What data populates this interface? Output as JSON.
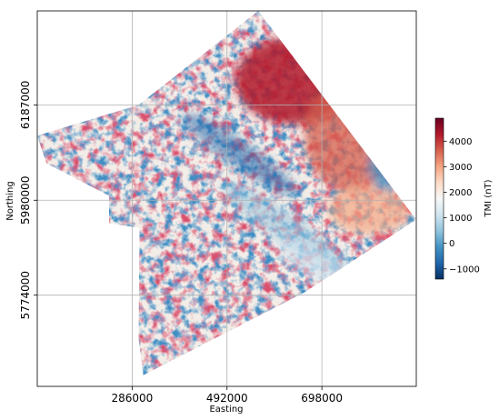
{
  "chart_data": {
    "type": "heatmap",
    "title": "",
    "xlabel": "Easting",
    "ylabel": "Northing",
    "x_ticks": [
      286000,
      492000,
      698000
    ],
    "y_ticks": [
      5774000,
      5980000,
      6187000
    ],
    "xlim": [
      80000,
      903000
    ],
    "ylim": [
      5576000,
      6391000
    ],
    "grid": true,
    "colormap": "RdBu_r",
    "colorbar": {
      "label": "TMI (nT)",
      "ticks": [
        -1000,
        0,
        1000,
        2000,
        3000,
        4000
      ],
      "range": [
        -1400,
        4900
      ],
      "colors": [
        "#053061",
        "#2166ac",
        "#4393c3",
        "#92c5de",
        "#d1e5f0",
        "#f7f7f7",
        "#fddbc7",
        "#f4a582",
        "#d6604d",
        "#b2182b",
        "#67001f"
      ]
    },
    "survey_outline": [
      [
        80000,
        6120000
      ],
      [
        300000,
        6187000
      ],
      [
        560000,
        6391000
      ],
      [
        903000,
        5938000
      ],
      [
        660000,
        5780000
      ],
      [
        310000,
        5600000
      ],
      [
        300000,
        5680000
      ],
      [
        302000,
        5920000
      ],
      [
        236000,
        5930000
      ],
      [
        236000,
        5990000
      ],
      [
        100000,
        6060000
      ]
    ]
  }
}
